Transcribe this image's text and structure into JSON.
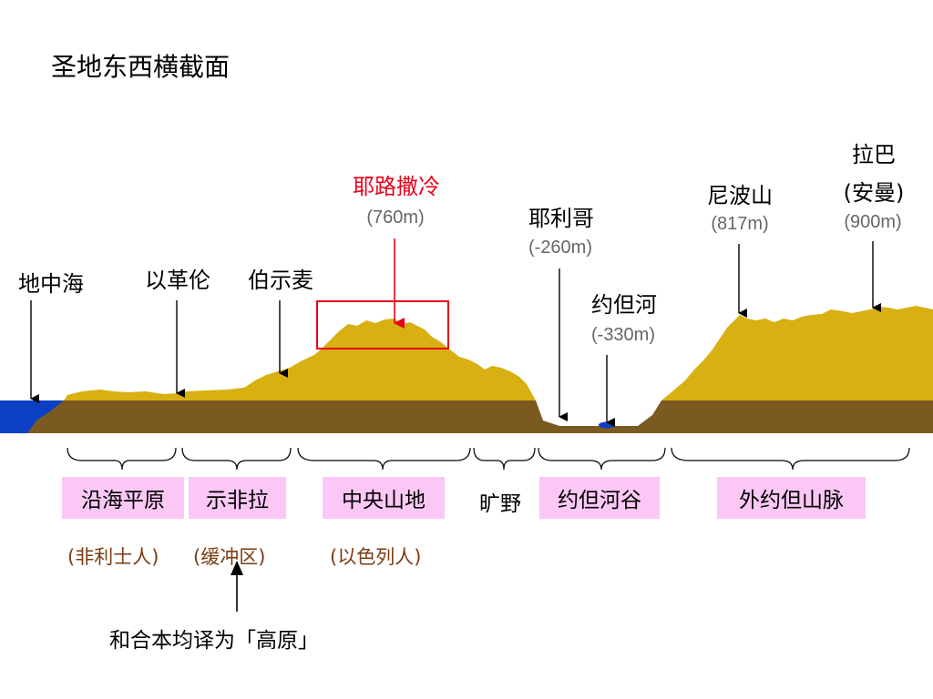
{
  "title": "圣地东西横截面",
  "places": {
    "mediterranean": "地中海",
    "eglon": "以革伦",
    "bethshemesh": "伯示麦",
    "jerusalem": {
      "name": "耶路撒冷",
      "elevation": "(760m)"
    },
    "jericho": {
      "name": "耶利哥",
      "elevation": "(-260m)"
    },
    "jordan_river": {
      "name": "约但河",
      "elevation": "(-330m)"
    },
    "nebo": {
      "name": "尼波山",
      "elevation": "(817m)"
    },
    "rabbah": {
      "name": "拉巴",
      "alt_name": "(安曼)",
      "elevation": "(900m)"
    }
  },
  "regions": {
    "coastal_plain": "沿海平原",
    "shephelah": "示非拉",
    "central_highlands": "中央山地",
    "wilderness": "旷野",
    "jordan_valley": "约但河谷",
    "transjordan": "外约但山脉"
  },
  "peoples": {
    "philistines": "(非利士人)",
    "buffer": "(缓冲区)",
    "israelites": "(以色列人)"
  },
  "note": "和合本均译为「高原」",
  "colors": {
    "land": "#d8b012",
    "base": "#7b5a22",
    "sea": "#0b3fc4",
    "highlight": "#e8001c",
    "region_bg": "#fbc8f5"
  }
}
